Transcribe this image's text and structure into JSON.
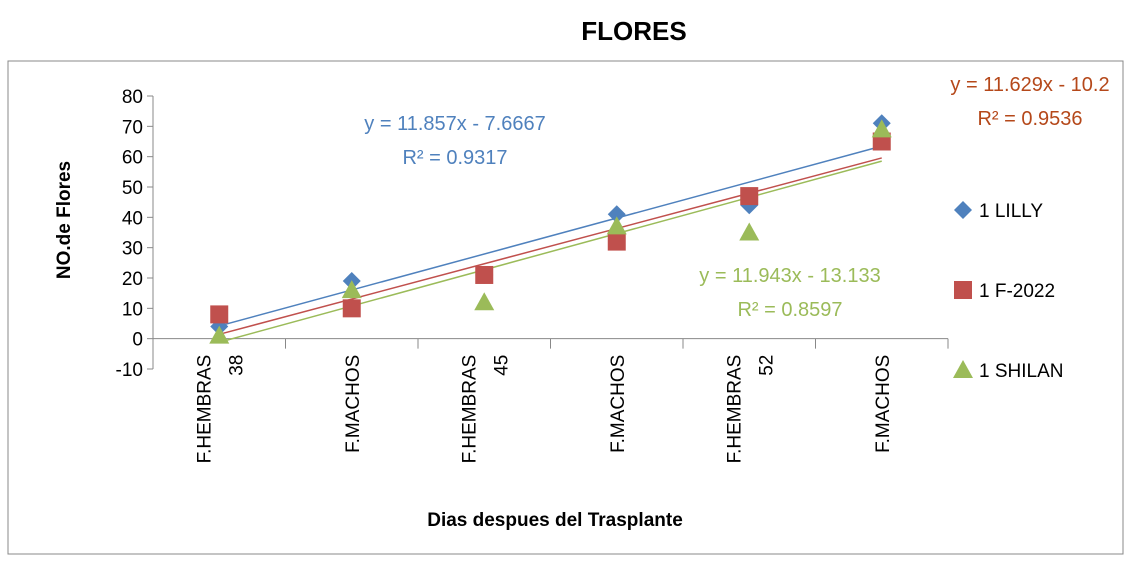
{
  "chart_data": {
    "type": "scatter",
    "title": "FLORES",
    "x_label": "Dias despues del Trasplante",
    "y_label": "NO.de Flores",
    "categories": [
      [
        "F.HEMBRAS",
        "38"
      ],
      [
        "F.MACHOS"
      ],
      [
        "F.HEMBRAS",
        "45"
      ],
      [
        "F.MACHOS"
      ],
      [
        "F.HEMBRAS",
        "52"
      ],
      [
        "F.MACHOS"
      ]
    ],
    "ylim": [
      -10,
      80
    ],
    "yticks": [
      -10,
      0,
      10,
      20,
      30,
      40,
      50,
      60,
      70,
      80
    ],
    "legend": "right",
    "series": [
      {
        "name": "1 LILLY",
        "color": "#4f81bd",
        "marker": "diamond",
        "values": [
          4,
          19,
          21,
          41,
          44,
          71
        ],
        "trendline": {
          "slope": 11.857,
          "intercept": -7.6667,
          "equation": "y = 11.857x - 7.6667",
          "r2": "R² = 0.9317",
          "label_color": "#4f81bd"
        }
      },
      {
        "name": "1 F-2022",
        "color": "#c0504d",
        "marker": "square",
        "values": [
          8,
          10,
          21,
          32,
          47,
          65
        ],
        "trendline": {
          "slope": 11.629,
          "intercept": -10.2,
          "equation": "y = 11.629x - 10.2",
          "r2": "R² = 0.9536",
          "label_color": "#b5481a"
        }
      },
      {
        "name": "1 SHILAN",
        "color": "#9bbb59",
        "marker": "triangle",
        "values": [
          1,
          16,
          12,
          37,
          35,
          69
        ],
        "trendline": {
          "slope": 11.943,
          "intercept": -13.133,
          "equation": "y = 11.943x - 13.133",
          "r2": "R² = 0.8597",
          "label_color": "#9bbb59"
        }
      }
    ]
  }
}
